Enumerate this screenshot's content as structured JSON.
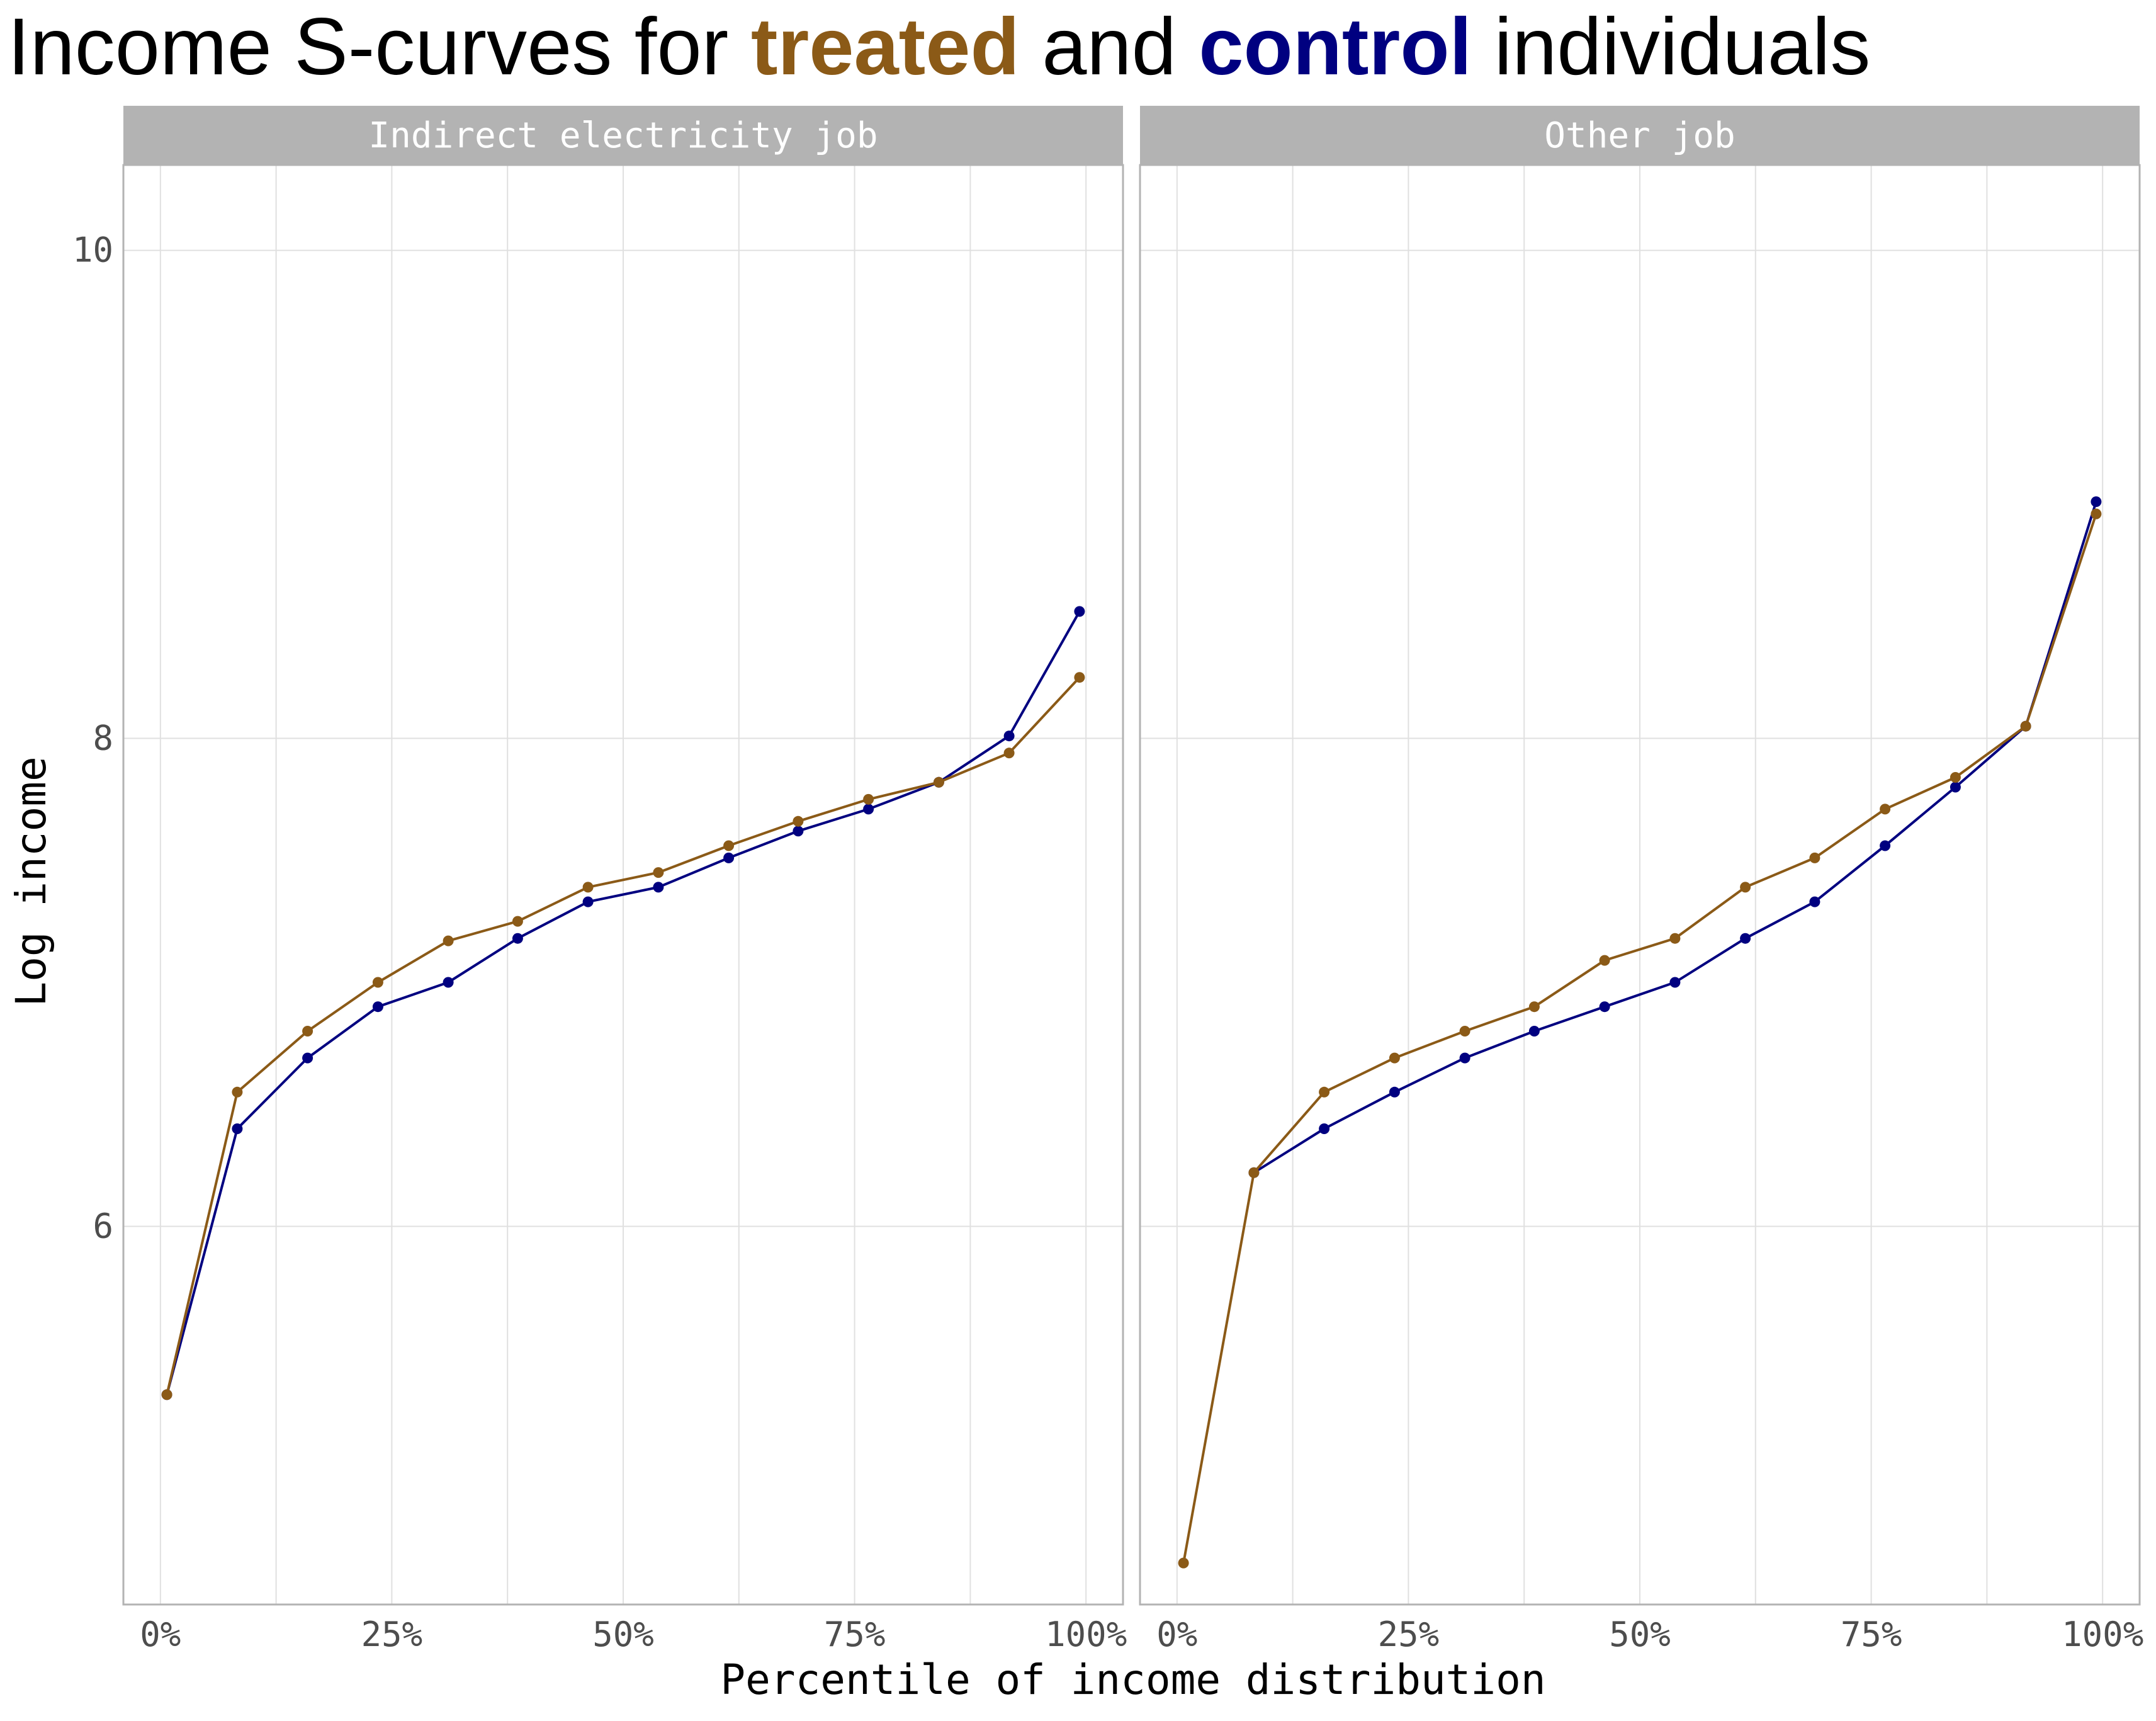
{
  "title": {
    "part1": "Income S-curves for ",
    "treated_word": "treated",
    "part2": " and ",
    "control_word": "control",
    "part3": " individuals"
  },
  "colors": {
    "treated": "#8b5a17",
    "control": "#000080",
    "strip_bg": "#b3b3b3",
    "grid": "#e0e0e0",
    "panel_border": "#b3b3b3"
  },
  "chart_data": {
    "type": "line",
    "xlabel": "Percentile of income distribution",
    "ylabel": "Log income",
    "xlim": [
      -0.04,
      1.04
    ],
    "ylim": [
      4.45,
      10.35
    ],
    "x_ticks": [
      0,
      0.25,
      0.5,
      0.75,
      1
    ],
    "x_tick_labels": [
      "0%",
      "25%",
      "50%",
      "75%",
      "100%"
    ],
    "y_ticks": [
      6,
      8,
      10
    ],
    "y_tick_labels": [
      "6",
      "8",
      "10"
    ],
    "grid": true,
    "legend": "none (series identified by colored words in title)",
    "panels": [
      {
        "name": "Indirect electricity job",
        "series": [
          {
            "name": "control",
            "x": [
              0.007,
              0.083,
              0.159,
              0.235,
              0.311,
              0.386,
              0.462,
              0.538,
              0.614,
              0.689,
              0.765,
              0.841,
              0.917,
              0.993
            ],
            "y": [
              5.31,
              6.4,
              6.69,
              6.9,
              7.0,
              7.18,
              7.33,
              7.39,
              7.51,
              7.62,
              7.71,
              7.82,
              8.01,
              8.52
            ]
          },
          {
            "name": "treated",
            "x": [
              0.007,
              0.083,
              0.159,
              0.235,
              0.311,
              0.386,
              0.462,
              0.538,
              0.614,
              0.689,
              0.765,
              0.841,
              0.917,
              0.993
            ],
            "y": [
              5.31,
              6.55,
              6.8,
              7.0,
              7.17,
              7.25,
              7.39,
              7.45,
              7.56,
              7.66,
              7.75,
              7.82,
              7.94,
              8.25
            ]
          }
        ]
      },
      {
        "name": "Other job",
        "series": [
          {
            "name": "control",
            "x": [
              0.083,
              0.159,
              0.235,
              0.311,
              0.386,
              0.462,
              0.538,
              0.614,
              0.689,
              0.765,
              0.841,
              0.917,
              0.993
            ],
            "y": [
              6.22,
              6.4,
              6.55,
              6.69,
              6.8,
              6.9,
              7.0,
              7.18,
              7.33,
              7.56,
              7.8,
              8.05,
              8.97
            ]
          },
          {
            "name": "treated",
            "x": [
              0.007,
              0.083,
              0.159,
              0.235,
              0.311,
              0.386,
              0.462,
              0.538,
              0.614,
              0.689,
              0.765,
              0.841,
              0.917,
              0.993
            ],
            "y": [
              4.62,
              6.22,
              6.55,
              6.69,
              6.8,
              6.9,
              7.09,
              7.18,
              7.39,
              7.51,
              7.71,
              7.84,
              8.05,
              8.92
            ]
          }
        ]
      }
    ]
  }
}
